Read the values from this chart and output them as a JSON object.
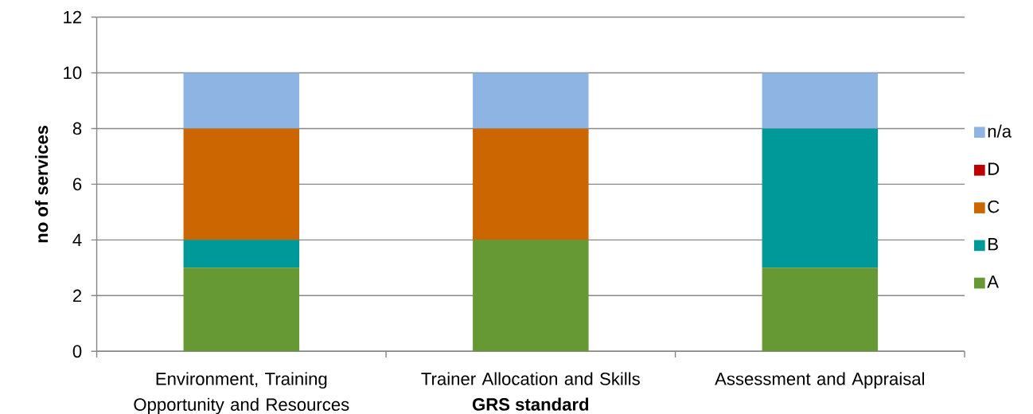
{
  "chart_data": {
    "type": "bar",
    "stacked": true,
    "xlabel": "GRS standard",
    "ylabel": "no of services",
    "categories": [
      "Environment, Training Opportunity and Resources",
      "Trainer Allocation and Skills",
      "Assessment and Appraisal"
    ],
    "series": [
      {
        "name": "A",
        "color": "#669933",
        "values": [
          3,
          4,
          3
        ]
      },
      {
        "name": "B",
        "color": "#009999",
        "values": [
          1,
          0,
          5
        ]
      },
      {
        "name": "C",
        "color": "#CC6600",
        "values": [
          4,
          4,
          0
        ]
      },
      {
        "name": "D",
        "color": "#C00000",
        "values": [
          0,
          0,
          0
        ]
      },
      {
        "name": "n/a",
        "color": "#8EB4E3",
        "values": [
          2,
          2,
          2
        ]
      }
    ],
    "ylim": [
      0,
      12
    ],
    "yticks": [
      0,
      2,
      4,
      6,
      8,
      10,
      12
    ],
    "grid": "y",
    "legend": "right"
  }
}
